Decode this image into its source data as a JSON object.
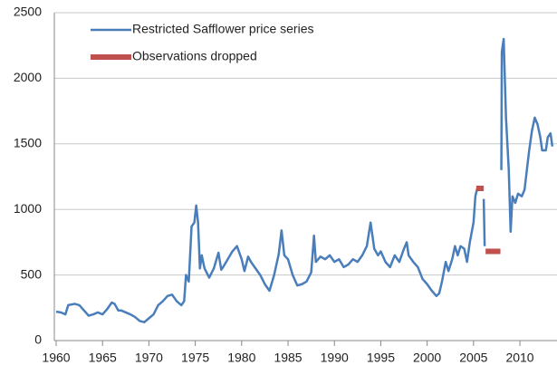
{
  "chart_data": {
    "type": "line",
    "ylim": [
      0,
      2500
    ],
    "yticks": [
      0,
      500,
      1000,
      1500,
      2000,
      2500
    ],
    "xlim": [
      1960,
      2014
    ],
    "xticks": [
      1960,
      1965,
      1970,
      1975,
      1980,
      1985,
      1990,
      1995,
      2000,
      2005,
      2010
    ],
    "grid": true,
    "legend": "upper-left",
    "series": [
      {
        "name": "Restricted Safflower price series",
        "color": "#4a7ebb",
        "x": [
          1960,
          1960.5,
          1961,
          1961.3,
          1962,
          1962.5,
          1963,
          1963.5,
          1964,
          1964.5,
          1965,
          1965.5,
          1966,
          1966.3,
          1966.7,
          1967,
          1968,
          1968.5,
          1969,
          1969.5,
          1970,
          1970.5,
          1971,
          1971.5,
          1972,
          1972.5,
          1973,
          1973.5,
          1973.8,
          1974,
          1974.3,
          1974.6,
          1974.9,
          1975.1,
          1975.3,
          1975.5,
          1975.7,
          1976,
          1976.5,
          1977,
          1977.5,
          1977.8,
          1978,
          1978.5,
          1979,
          1979.5,
          1980,
          1980.3,
          1980.7,
          1981,
          1981.5,
          1982,
          1982.5,
          1983,
          1983.5,
          1984,
          1984.3,
          1984.6,
          1985,
          1985.5,
          1986,
          1986.5,
          1987,
          1987.5,
          1987.8,
          1988,
          1988.5,
          1989,
          1989.5,
          1990,
          1990.5,
          1991,
          1991.5,
          1992,
          1992.5,
          1993,
          1993.5,
          1993.9,
          1994.3,
          1994.7,
          1995,
          1995.5,
          1996,
          1996.5,
          1997,
          1997.5,
          1997.8,
          1998,
          1998.5,
          1999,
          1999.5,
          2000,
          2000.5,
          2001,
          2001.3,
          2001.6,
          2002,
          2002.3,
          2002.7,
          2003,
          2003.3,
          2003.6,
          2004,
          2004.3,
          2004.6,
          2005,
          2005.2,
          2005.4,
          2005.7,
          2006.1,
          2006.2,
          2007,
          2008,
          2008.05,
          2008.25,
          2008.5,
          2008.8,
          2009,
          2009.2,
          2009.5,
          2009.8,
          2010.2,
          2010.5,
          2011,
          2011.3,
          2011.6,
          2011.9,
          2012.2,
          2012.4,
          2012.8,
          2013,
          2013.3,
          2013.5
        ],
        "values": [
          220,
          215,
          200,
          270,
          280,
          270,
          230,
          190,
          200,
          215,
          200,
          240,
          290,
          280,
          230,
          230,
          200,
          180,
          150,
          140,
          170,
          200,
          270,
          300,
          340,
          350,
          300,
          270,
          300,
          500,
          450,
          870,
          900,
          1030,
          900,
          550,
          650,
          550,
          480,
          550,
          670,
          540,
          560,
          620,
          680,
          720,
          620,
          530,
          640,
          600,
          550,
          500,
          430,
          380,
          500,
          660,
          840,
          650,
          620,
          500,
          420,
          430,
          450,
          520,
          800,
          600,
          640,
          620,
          650,
          600,
          620,
          560,
          580,
          620,
          600,
          650,
          720,
          900,
          700,
          650,
          680,
          600,
          560,
          650,
          600,
          700,
          750,
          650,
          600,
          560,
          470,
          430,
          380,
          340,
          360,
          450,
          600,
          530,
          620,
          720,
          650,
          720,
          700,
          600,
          750,
          900,
          1100,
          1160,
          null,
          1080,
          720,
          null,
          1300,
          2200,
          2300,
          1700,
          1300,
          830,
          1100,
          1050,
          1120,
          1100,
          1150,
          1450,
          1600,
          1700,
          1650,
          1550,
          1450,
          1450,
          1550,
          1580,
          1480
        ]
      },
      {
        "name": "Observations dropped",
        "color": "#c0504d",
        "x": [
          2005.3,
          2006.1,
          2006.2,
          2006.3,
          2007.9
        ],
        "values": [
          1160,
          1160,
          null,
          680,
          680
        ]
      }
    ]
  }
}
